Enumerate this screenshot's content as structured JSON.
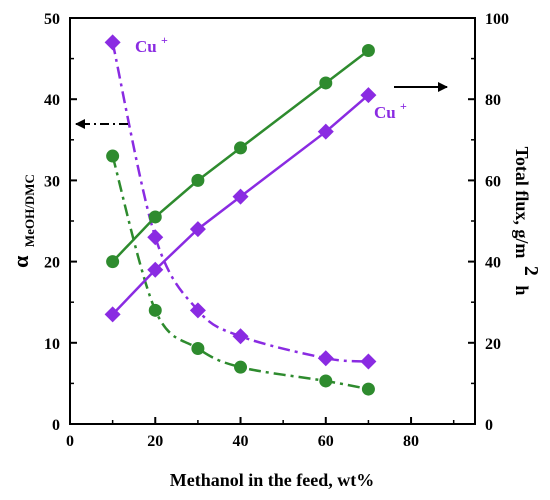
{
  "chart_data": {
    "type": "line",
    "x_axis": {
      "label": "Methanol in the feed, wt%",
      "range": [
        0,
        95
      ],
      "ticks": [
        0,
        20,
        40,
        60,
        80
      ],
      "tick_labels": [
        "0",
        "20",
        "40",
        "60",
        "80"
      ]
    },
    "y_left_axis": {
      "label_symbol": "α",
      "label_subscript": "MeOH/DMC",
      "range": [
        0,
        50
      ],
      "ticks": [
        0,
        10,
        20,
        30,
        40,
        50
      ],
      "tick_labels": [
        "0",
        "10",
        "20",
        "30",
        "40",
        "50"
      ]
    },
    "y_right_axis": {
      "label_main": "Total flux, g/m",
      "label_sup": "2",
      "label_tail": "h",
      "range": [
        0,
        100
      ],
      "ticks": [
        0,
        20,
        40,
        60,
        80,
        100
      ],
      "tick_labels": [
        "0",
        "20",
        "40",
        "60",
        "80",
        "100"
      ]
    },
    "x": [
      10,
      20,
      30,
      40,
      60,
      70
    ],
    "series": [
      {
        "axis": "left",
        "color": "#8a2be2",
        "marker": "diamond",
        "line_style": "dash-dot",
        "values": [
          47,
          23,
          14,
          10.8,
          8.1,
          7.7
        ]
      },
      {
        "axis": "left",
        "color": "#2e8b2e",
        "marker": "circle",
        "line_style": "dash-dot",
        "values": [
          33,
          14,
          9.3,
          7,
          5.3,
          4.3
        ]
      },
      {
        "axis": "right",
        "color": "#8a2be2",
        "marker": "diamond",
        "line_style": "solid",
        "values": [
          27,
          38,
          48,
          56,
          72,
          81
        ]
      },
      {
        "axis": "right",
        "color": "#2e8b2e",
        "marker": "circle",
        "line_style": "solid",
        "values": [
          40,
          51,
          60,
          68,
          84,
          92
        ]
      }
    ],
    "annotations": {
      "cu_left": {
        "main": "Cu",
        "sup": "+"
      },
      "cu_right": {
        "main": "Cu",
        "sup": "+"
      },
      "arrow_left": "points to left axis",
      "arrow_right": "points to right axis"
    },
    "colors": {
      "purple": "#8a2be2",
      "green": "#2e8b2e",
      "axis": "#000000"
    },
    "grid": false,
    "legend": "none"
  }
}
